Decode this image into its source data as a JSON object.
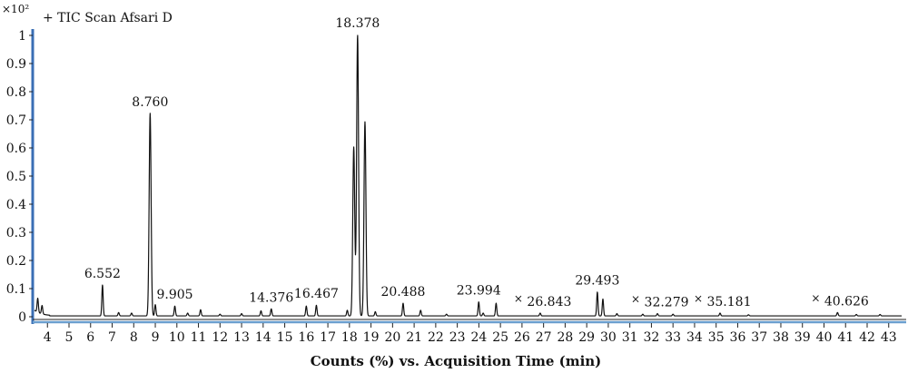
{
  "chart_data": {
    "type": "line",
    "title": "+ TIC Scan Afsari D",
    "y_multiplier": "×10²",
    "xlabel": "Counts (%) vs. Acquisition Time (min)",
    "ylabel": "",
    "xlim": [
      3.4,
      43.6
    ],
    "ylim": [
      0,
      1.0
    ],
    "x_ticks": [
      4,
      5,
      6,
      7,
      8,
      9,
      10,
      11,
      12,
      13,
      14,
      15,
      16,
      17,
      18,
      19,
      20,
      21,
      22,
      23,
      24,
      25,
      26,
      27,
      28,
      29,
      30,
      31,
      32,
      33,
      34,
      35,
      36,
      37,
      38,
      39,
      40,
      41,
      42,
      43
    ],
    "x_tick_labels": [
      "4",
      "5",
      "6",
      "7",
      "8",
      "9",
      "10",
      "11",
      "12",
      "13",
      "14",
      "15",
      "16",
      "17",
      "18",
      "19",
      "20",
      "21",
      "22",
      "23",
      "24",
      "25",
      "26",
      "27",
      "28",
      "29",
      "30",
      "31",
      "32",
      "33",
      "34",
      "35",
      "36",
      "37",
      "38",
      "39",
      "40",
      "41",
      "42",
      "43"
    ],
    "y_ticks": [
      0,
      0.1,
      0.2,
      0.3,
      0.4,
      0.5,
      0.6,
      0.7,
      0.8,
      0.9,
      1
    ],
    "y_tick_labels": [
      "0",
      "0.1",
      "0.2",
      "0.3",
      "0.4",
      "0.5",
      "0.6",
      "0.7",
      "0.8",
      "0.9",
      "1"
    ],
    "series": [
      {
        "peaks": [
          {
            "x": 3.55,
            "y": 0.05
          },
          {
            "x": 3.75,
            "y": 0.03
          },
          {
            "x": 6.552,
            "y": 0.11
          },
          {
            "x": 7.3,
            "y": 0.012
          },
          {
            "x": 7.9,
            "y": 0.01
          },
          {
            "x": 8.76,
            "y": 0.72
          },
          {
            "x": 9.0,
            "y": 0.04
          },
          {
            "x": 9.905,
            "y": 0.035
          },
          {
            "x": 10.5,
            "y": 0.01
          },
          {
            "x": 11.1,
            "y": 0.022
          },
          {
            "x": 12.0,
            "y": 0.006
          },
          {
            "x": 13.0,
            "y": 0.008
          },
          {
            "x": 13.9,
            "y": 0.018
          },
          {
            "x": 14.376,
            "y": 0.025
          },
          {
            "x": 16.0,
            "y": 0.035
          },
          {
            "x": 16.467,
            "y": 0.038
          },
          {
            "x": 17.9,
            "y": 0.02
          },
          {
            "x": 18.2,
            "y": 0.6
          },
          {
            "x": 18.378,
            "y": 1.0
          },
          {
            "x": 18.72,
            "y": 0.69
          },
          {
            "x": 19.2,
            "y": 0.015
          },
          {
            "x": 20.488,
            "y": 0.045
          },
          {
            "x": 21.3,
            "y": 0.02
          },
          {
            "x": 22.5,
            "y": 0.006
          },
          {
            "x": 23.994,
            "y": 0.05
          },
          {
            "x": 24.2,
            "y": 0.01
          },
          {
            "x": 24.8,
            "y": 0.045
          },
          {
            "x": 26.843,
            "y": 0.01
          },
          {
            "x": 29.493,
            "y": 0.085
          },
          {
            "x": 29.75,
            "y": 0.06
          },
          {
            "x": 30.4,
            "y": 0.008
          },
          {
            "x": 31.6,
            "y": 0.006
          },
          {
            "x": 32.279,
            "y": 0.008
          },
          {
            "x": 33.0,
            "y": 0.006
          },
          {
            "x": 35.181,
            "y": 0.01
          },
          {
            "x": 36.5,
            "y": 0.004
          },
          {
            "x": 40.626,
            "y": 0.012
          },
          {
            "x": 41.5,
            "y": 0.005
          },
          {
            "x": 42.6,
            "y": 0.005
          }
        ]
      }
    ],
    "peak_labels": [
      {
        "x": 6.552,
        "y": 0.11,
        "text": "6.552",
        "marker": false
      },
      {
        "x": 8.76,
        "y": 0.72,
        "text": "8.760",
        "marker": false
      },
      {
        "x": 9.905,
        "y": 0.035,
        "text": "9.905",
        "marker": false
      },
      {
        "x": 14.376,
        "y": 0.025,
        "text": "14.376",
        "marker": false
      },
      {
        "x": 16.467,
        "y": 0.038,
        "text": "16.467",
        "marker": false
      },
      {
        "x": 18.378,
        "y": 1.0,
        "text": "18.378",
        "marker": false
      },
      {
        "x": 20.488,
        "y": 0.045,
        "text": "20.488",
        "marker": false
      },
      {
        "x": 23.994,
        "y": 0.05,
        "text": "23.994",
        "marker": false
      },
      {
        "x": 26.843,
        "y": 0.01,
        "text": "26.843",
        "marker": true
      },
      {
        "x": 29.493,
        "y": 0.085,
        "text": "29.493",
        "marker": false
      },
      {
        "x": 32.279,
        "y": 0.008,
        "text": "32.279",
        "marker": true
      },
      {
        "x": 35.181,
        "y": 0.01,
        "text": "35.181",
        "marker": true
      },
      {
        "x": 40.626,
        "y": 0.012,
        "text": "40.626",
        "marker": true
      }
    ],
    "grid": false,
    "colors": {
      "trace": "#111111",
      "axis": "#3a6fb5",
      "baseline": "#6a9fcf",
      "peak_marker": "#555555"
    }
  }
}
